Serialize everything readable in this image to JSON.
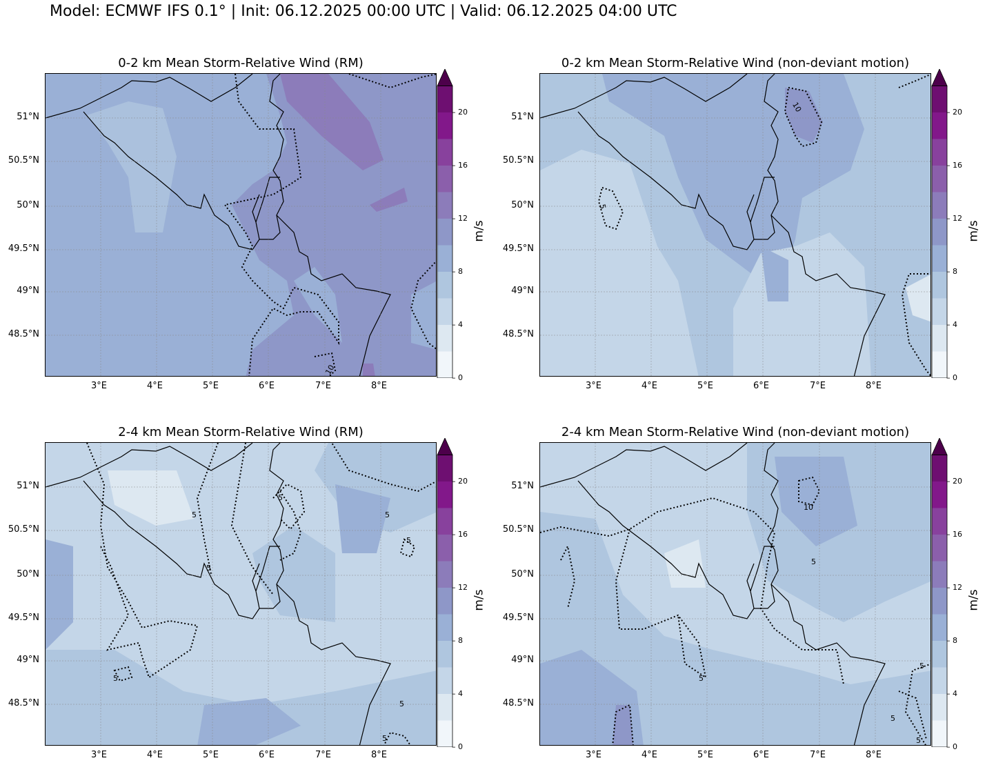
{
  "suptitle": "Model: ECMWF IFS 0.1° | Init: 06.12.2025 00:00 UTC | Valid: 06.12.2025 04:00 UTC",
  "lon_ticks": [
    "3°E",
    "4°E",
    "5°E",
    "6°E",
    "7°E",
    "8°E"
  ],
  "lat_ticks": [
    "51°N",
    "50.5°N",
    "50°N",
    "49.5°N",
    "49°N",
    "48.5°N"
  ],
  "colorbar": {
    "unit": "m/s",
    "ticks": [
      "0",
      "4",
      "8",
      "12",
      "16",
      "20"
    ],
    "levels": [
      0,
      2,
      4,
      6,
      8,
      10,
      12,
      14,
      16,
      18,
      20,
      22
    ],
    "colors": [
      "#f1f6fa",
      "#dde8f1",
      "#c4d6e8",
      "#afc6df",
      "#9ab0d6",
      "#8e97c8",
      "#8c7cba",
      "#8b5fab",
      "#88419d",
      "#82188a",
      "#6e0f71"
    ],
    "extend_color": "#4d004b"
  },
  "panels": [
    {
      "title": "0-2 km Mean Storm-Relative Wind (RM)",
      "contour_labels": [
        "10"
      ]
    },
    {
      "title": "0-2 km Mean Storm-Relative Wind (non-deviant motion)",
      "contour_labels": [
        "10",
        "5"
      ]
    },
    {
      "title": "2-4 km Mean Storm-Relative Wind (RM)",
      "contour_labels": [
        "5",
        "5",
        "5",
        "5",
        "5",
        "5",
        "5",
        "5"
      ]
    },
    {
      "title": "2-4 km Mean Storm-Relative Wind (non-deviant motion)",
      "contour_labels": [
        "10",
        "5",
        "5",
        "5",
        "5",
        "5"
      ]
    }
  ]
}
